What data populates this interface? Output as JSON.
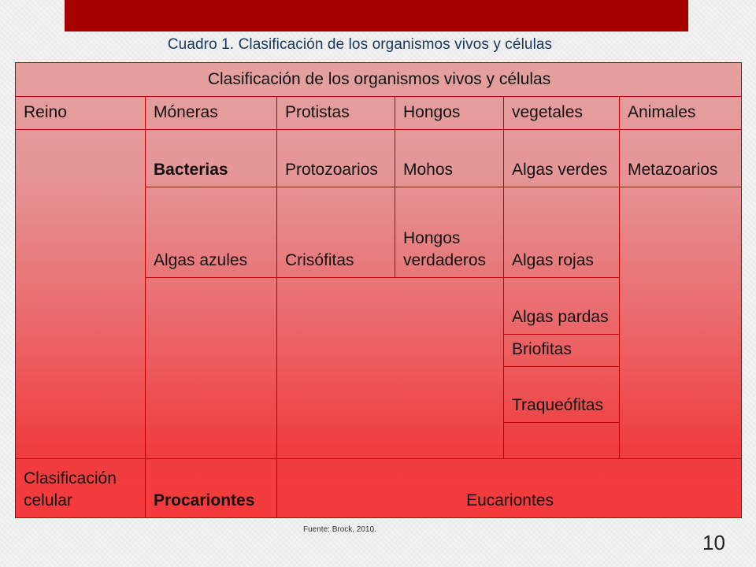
{
  "caption": "Cuadro 1. Clasificación de los organismos vivos y células",
  "table": {
    "title": "Clasificación de los organismos vivos y células",
    "headers": {
      "reino": "Reino",
      "moneras": "Móneras",
      "protistas": "Protistas",
      "hongos": "Hongos",
      "vegetales": "vegetales",
      "animales": "Animales"
    },
    "row1": {
      "moneras": "Bacterias",
      "protistas": "Protozoarios",
      "hongos": "Mohos",
      "vegetales": "Algas verdes",
      "animales": "Metazoarios"
    },
    "row2": {
      "moneras": "Algas azules",
      "protistas": "Crisófitas",
      "hongos": "Hongos verdaderos",
      "vegetales": "Algas rojas"
    },
    "row3": {
      "vegetales": "Algas pardas"
    },
    "row4": {
      "vegetales": "Briofitas"
    },
    "row5": {
      "vegetales": "Traqueófitas"
    },
    "footer": {
      "label": "Clasificación celular",
      "procariontes": "Procariontes",
      "eucariontes": "Eucariontes"
    }
  },
  "source": "Fuente: Brock, 2010.",
  "page_number": "10",
  "colors": {
    "top_bar": "#a50000",
    "caption_text": "#17375e",
    "table_top": "#e5a0a0",
    "table_bottom": "#f43a3c",
    "border": "#c00000"
  }
}
